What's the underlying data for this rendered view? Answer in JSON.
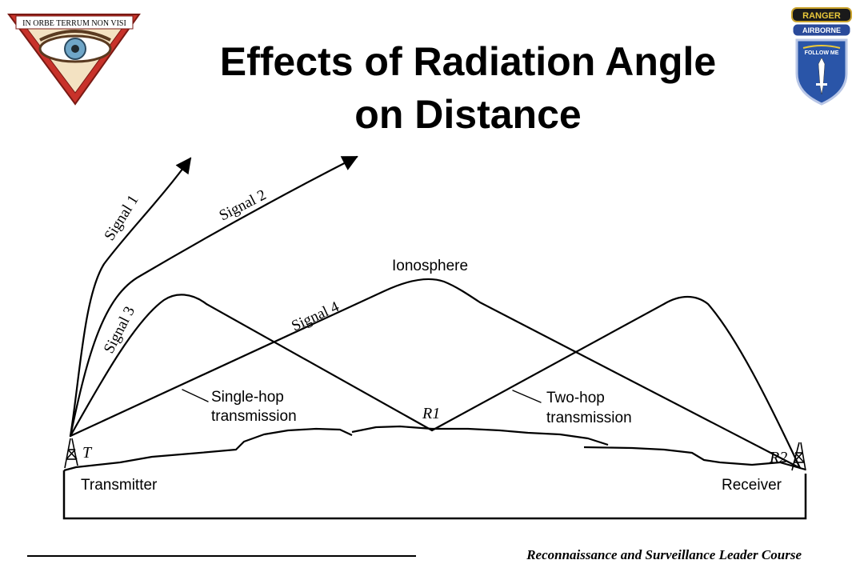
{
  "slide": {
    "title_line1": "Effects of Radiation Angle",
    "title_line2": "on Distance"
  },
  "logos": {
    "left": {
      "motto": "IN ORBE TERRUM NON VISI",
      "icon": "eye-triangle-insignia"
    },
    "right": {
      "tab1": "RANGER",
      "tab2": "AIRBORNE",
      "motto": "FOLLOW ME",
      "icon": "infantry-shield-insignia"
    }
  },
  "diagram": {
    "signals": [
      "Signal 1",
      "Signal 2",
      "Signal 3",
      "Signal 4"
    ],
    "ionosphere": "Ionosphere",
    "single_hop_line1": "Single-hop",
    "single_hop_line2": "transmission",
    "two_hop_line1": "Two-hop",
    "two_hop_line2": "transmission",
    "r1": "R1",
    "t": "T",
    "r2": "R2",
    "transmitter": "Transmitter",
    "receiver": "Receiver"
  },
  "footer": {
    "text": "Reconnaissance and Surveillance Leader Course"
  }
}
